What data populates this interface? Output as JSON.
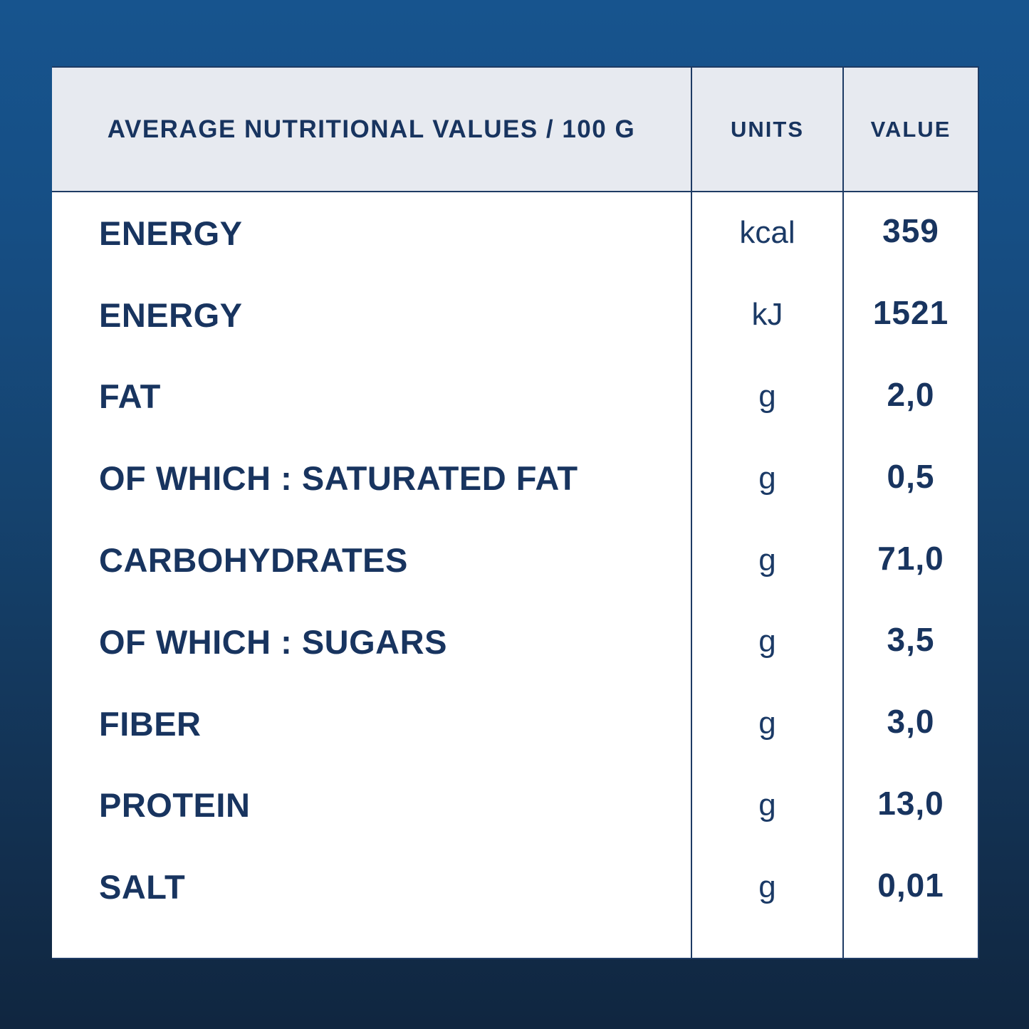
{
  "table": {
    "header": {
      "label": "AVERAGE NUTRITIONAL VALUES / 100 G",
      "units": "UNITS",
      "value": "VALUE"
    },
    "rows": [
      {
        "label": "ENERGY",
        "unit": "kcal",
        "value": "359"
      },
      {
        "label": "ENERGY",
        "unit": "kJ",
        "value": "1521"
      },
      {
        "label": "FAT",
        "unit": "g",
        "value": "2,0"
      },
      {
        "label": "OF WHICH : SATURATED FAT",
        "unit": "g",
        "value": "0,5"
      },
      {
        "label": "CARBOHYDRATES",
        "unit": "g",
        "value": "71,0"
      },
      {
        "label": "OF WHICH : SUGARS",
        "unit": "g",
        "value": "3,5"
      },
      {
        "label": "FIBER",
        "unit": "g",
        "value": "3,0"
      },
      {
        "label": "PROTEIN",
        "unit": "g",
        "value": "13,0"
      },
      {
        "label": "SALT",
        "unit": "g",
        "value": "0,01"
      }
    ],
    "colors": {
      "text_navy": "#18345F",
      "border_navy": "#1E3B64",
      "header_background": "#E7EAF0",
      "body_background": "#FFFFFF",
      "page_background_top": "#17548E",
      "page_background_bottom": "#102640"
    }
  }
}
